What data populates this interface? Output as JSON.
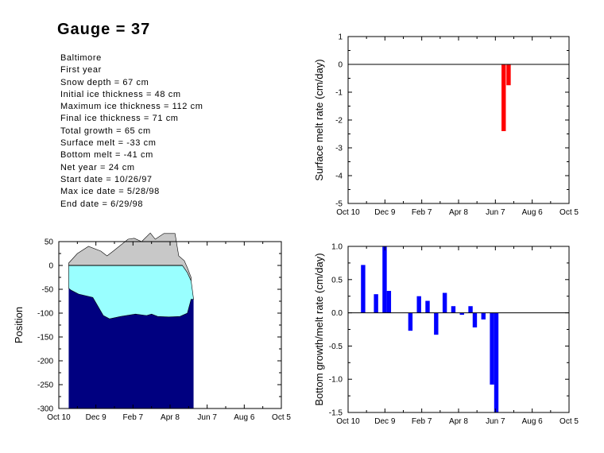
{
  "title": "Gauge = 37",
  "info_lines": [
    "Baltimore",
    "First year",
    "Snow depth = 67 cm",
    "Initial ice thickness = 48 cm",
    "Maximum ice thickness = 112 cm",
    "Final ice thickness = 71 cm",
    "Total growth = 65 cm",
    "Surface melt = -33 cm",
    "Bottom melt = -41 cm",
    "Net year = 24 cm",
    "Start date = 10/26/97",
    "Max ice date = 5/28/98",
    "End date = 6/29/98"
  ],
  "chart_data": [
    {
      "id": "surface-melt",
      "type": "bar",
      "xlabel": "",
      "ylabel": "Surface melt rate (cm/day)",
      "xticks": [
        "Oct 10",
        "Dec 9",
        "Feb 7",
        "Apr 8",
        "Jun 7",
        "Aug 6",
        "Oct 5"
      ],
      "ylim": [
        -5,
        1
      ],
      "yticks": [
        "1",
        "0",
        "-1",
        "-2",
        "-3",
        "-4",
        "-5"
      ],
      "bar_color": "#ff0000",
      "bars": [
        {
          "x": 250,
          "value": -2.4
        },
        {
          "x": 258,
          "value": -0.75
        }
      ]
    },
    {
      "id": "bottom-growth",
      "type": "bar",
      "xlabel": "",
      "ylabel": "Bottom growth/melt rate (cm/day)",
      "xticks": [
        "Oct 10",
        "Dec 9",
        "Feb 7",
        "Apr 8",
        "Jun 7",
        "Aug 6",
        "Oct 5"
      ],
      "ylim": [
        -1.5,
        1.0
      ],
      "yticks": [
        "1.0",
        "0.5",
        "0.0",
        "-0.5",
        "-1.0",
        "-1.5"
      ],
      "bar_color": "#0000ff",
      "bars": [
        {
          "x": 21,
          "value": 0.72
        },
        {
          "x": 42,
          "value": 0.28
        },
        {
          "x": 56,
          "value": 1.0
        },
        {
          "x": 63,
          "value": 0.33
        },
        {
          "x": 98,
          "value": -0.27
        },
        {
          "x": 112,
          "value": 0.25
        },
        {
          "x": 126,
          "value": 0.18
        },
        {
          "x": 140,
          "value": -0.33
        },
        {
          "x": 154,
          "value": 0.3
        },
        {
          "x": 168,
          "value": 0.1
        },
        {
          "x": 182,
          "value": -0.03
        },
        {
          "x": 196,
          "value": 0.1
        },
        {
          "x": 203,
          "value": -0.22
        },
        {
          "x": 217,
          "value": -0.1
        },
        {
          "x": 231,
          "value": -1.08
        },
        {
          "x": 238,
          "value": -1.5
        }
      ]
    },
    {
      "id": "position",
      "type": "area",
      "xlabel": "",
      "ylabel": "Position",
      "xticks": [
        "Oct 10",
        "Dec 9",
        "Feb 7",
        "Apr 8",
        "Jun 7",
        "Aug 6",
        "Oct 5"
      ],
      "ylim": [
        -300,
        50
      ],
      "yticks": [
        "50",
        "0",
        "-50",
        "-100",
        "-150",
        "-200",
        "-250",
        "-300"
      ],
      "colors": {
        "snow": "#c8c8c8",
        "ice": "#99ffff",
        "bottom": "#000080"
      },
      "snow_top": [
        [
          16,
          5
        ],
        [
          30,
          25
        ],
        [
          48,
          40
        ],
        [
          68,
          30
        ],
        [
          78,
          20
        ],
        [
          88,
          30
        ],
        [
          112,
          55
        ],
        [
          122,
          57
        ],
        [
          134,
          50
        ],
        [
          148,
          68
        ],
        [
          156,
          55
        ],
        [
          170,
          67
        ],
        [
          188,
          67
        ],
        [
          194,
          20
        ],
        [
          203,
          10
        ],
        [
          208,
          -5
        ],
        [
          214,
          -25
        ]
      ],
      "ice_top": [
        [
          16,
          0
        ],
        [
          200,
          0
        ],
        [
          208,
          -15
        ],
        [
          214,
          -32
        ]
      ],
      "ice_bottom": [
        [
          16,
          -48
        ],
        [
          20,
          -52
        ],
        [
          32,
          -60
        ],
        [
          55,
          -67
        ],
        [
          72,
          -105
        ],
        [
          82,
          -112
        ],
        [
          100,
          -107
        ],
        [
          124,
          -102
        ],
        [
          142,
          -105
        ],
        [
          150,
          -102
        ],
        [
          160,
          -107
        ],
        [
          178,
          -108
        ],
        [
          196,
          -107
        ],
        [
          208,
          -100
        ],
        [
          214,
          -71
        ],
        [
          218,
          -71
        ]
      ]
    }
  ]
}
